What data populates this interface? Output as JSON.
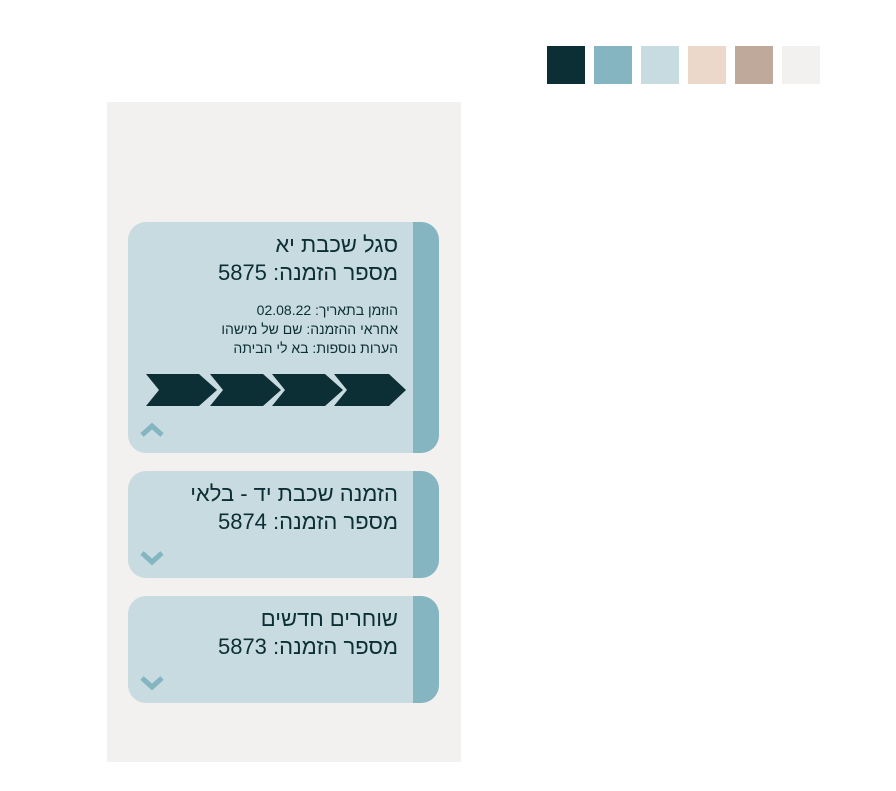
{
  "palette": {
    "swatches": [
      "#0c2e35",
      "#84b5c1",
      "#c7dbe0",
      "#ebd8cb",
      "#bfa99a",
      "#f2f1f0"
    ]
  },
  "orders": [
    {
      "title": "סגל שכבת יא",
      "order_number": "מספר הזמנה: 5875",
      "expanded": true,
      "details": [
        "הוזמן בתאריך: 02.08.22",
        "אחראי ההזמנה: שם של מישהו",
        "הערות נוספות: בא לי הביתה"
      ],
      "progress_steps_total": 4,
      "progress_steps_done": 4,
      "toggle_icon": "chevron-up-icon"
    },
    {
      "title": "הזמנה שכבת יד - בלאי",
      "order_number": "מספר הזמנה: 5874",
      "expanded": false,
      "toggle_icon": "chevron-down-icon"
    },
    {
      "title": "שוחרים חדשים",
      "order_number": "מספר הזמנה: 5873",
      "expanded": false,
      "toggle_icon": "chevron-down-icon"
    }
  ],
  "colors": {
    "dark": "#0c2e35",
    "accent": "#84b5c1",
    "card": "#c7dbe0",
    "background": "#f2f1f0"
  }
}
